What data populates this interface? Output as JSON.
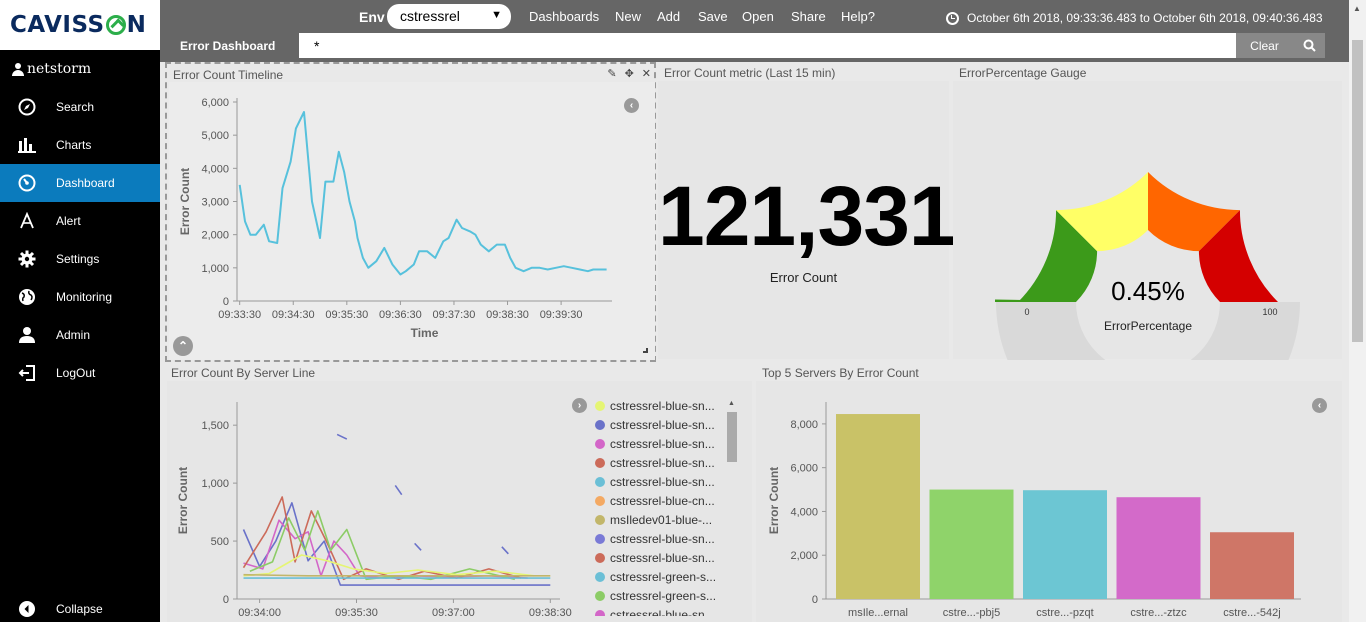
{
  "brand": {
    "logo_text_left": "CAVISS",
    "logo_text_right": "N"
  },
  "user": {
    "name": "netstorm"
  },
  "sidebar": {
    "items": [
      {
        "label": "Search",
        "icon": "compass-icon",
        "active": false
      },
      {
        "label": "Charts",
        "icon": "bar-chart-icon",
        "active": false
      },
      {
        "label": "Dashboard",
        "icon": "dashboard-icon",
        "active": true
      },
      {
        "label": "Alert",
        "icon": "alert-a-icon",
        "active": false
      },
      {
        "label": "Settings",
        "icon": "gear-icon",
        "active": false
      },
      {
        "label": "Monitoring",
        "icon": "globe-icon",
        "active": false
      },
      {
        "label": "Admin",
        "icon": "user-icon",
        "active": false
      },
      {
        "label": "LogOut",
        "icon": "logout-icon",
        "active": false
      }
    ],
    "collapse_label": "Collapse"
  },
  "topbar": {
    "env_label": "Env",
    "env_value": "cstressrel",
    "menu": [
      "Dashboards",
      "New",
      "Add",
      "Save",
      "Open",
      "Share",
      "Help?"
    ],
    "time_range": "October 6th 2018, 09:33:36.483 to October 6th 2018, 09:40:36.483",
    "dashboard_title": "Error Dashboard",
    "query": "*",
    "clear_label": "Clear"
  },
  "panels": {
    "timeline": {
      "title": "Error Count Timeline"
    },
    "metric": {
      "title": "Error Count metric (Last 15 min)",
      "value": "121,331",
      "label": "Error Count"
    },
    "gauge": {
      "title": "ErrorPercentage Gauge",
      "value": "0.45%",
      "label": "ErrorPercentage",
      "min_label": "0",
      "max_label": "100"
    },
    "server_line": {
      "title": "Error Count By Server Line"
    },
    "top5": {
      "title": "Top 5 Servers By Error Count"
    }
  },
  "colors": {
    "accent": "#0b7bbd",
    "timeline_line": "#57c1dc",
    "gauge_green": "#3c9a1a",
    "gauge_yellow": "#ffff66",
    "gauge_orange": "#ff6600",
    "gauge_red": "#d40000",
    "gauge_track": "#d9d9d9"
  },
  "chart_data": [
    {
      "type": "line",
      "name": "timeline",
      "xlabel": "Time",
      "ylabel": "Error Count",
      "ylim": [
        0,
        6000
      ],
      "yticks": [
        "0",
        "1,000",
        "2,000",
        "3,000",
        "4,000",
        "5,000",
        "6,000"
      ],
      "xticks": [
        "09:33:30",
        "09:34:30",
        "09:35:30",
        "09:36:30",
        "09:37:30",
        "09:38:30",
        "09:39:30"
      ],
      "x_minutes": [
        0.0,
        0.1,
        0.2,
        0.3,
        0.45,
        0.55,
        0.7,
        0.8,
        0.95,
        1.05,
        1.2,
        1.35,
        1.5,
        1.6,
        1.75,
        1.85,
        1.95,
        2.05,
        2.15,
        2.2,
        2.3,
        2.4,
        2.55,
        2.7,
        2.85,
        3.0,
        3.1,
        3.25,
        3.35,
        3.5,
        3.65,
        3.8,
        3.9,
        4.05,
        4.15,
        4.3,
        4.4,
        4.5,
        4.65,
        4.8,
        4.95,
        5.05,
        5.15,
        5.3,
        5.45,
        5.6,
        5.75,
        5.9,
        6.05,
        6.2,
        6.35,
        6.5,
        6.6,
        6.75,
        6.85
      ],
      "values": [
        3500,
        2400,
        2000,
        2000,
        2300,
        1800,
        1750,
        3400,
        4200,
        5200,
        5700,
        3000,
        1900,
        3600,
        3600,
        4500,
        3900,
        3000,
        2400,
        1900,
        1300,
        1000,
        1200,
        1600,
        1100,
        800,
        900,
        1100,
        1500,
        1500,
        1300,
        1800,
        1900,
        2450,
        2200,
        2100,
        2000,
        1700,
        1500,
        1700,
        1700,
        1300,
        1000,
        900,
        1000,
        1000,
        950,
        1000,
        1050,
        1000,
        950,
        900,
        950,
        950,
        950
      ]
    },
    {
      "type": "line",
      "name": "server_line",
      "ylabel": "Error Count",
      "ylim": [
        0,
        1700
      ],
      "yticks": [
        "0",
        "500",
        "1,000",
        "1,500"
      ],
      "xticks": [
        "09:34:00",
        "09:35:30",
        "09:37:00",
        "09:38:30"
      ],
      "legend": [
        "cstressrel-blue-sn...",
        "cstressrel-blue-sn...",
        "cstressrel-blue-sn...",
        "cstressrel-blue-sn...",
        "cstressrel-blue-sn...",
        "cstressrel-blue-cn...",
        "msIledev01-blue-...",
        "cstressrel-blue-sn...",
        "cstressrel-blue-sn...",
        "cstressrel-green-s...",
        "cstressrel-green-s...",
        "cstressrel-blue-sn..."
      ],
      "legend_colors": [
        "#e5f574",
        "#6a72c9",
        "#d366c8",
        "#cc6b5a",
        "#6bbfd6",
        "#f4a962",
        "#c2b66a",
        "#7a7ad6",
        "#cc6b5a",
        "#6bbfd6",
        "#8ccc66",
        "#d366c8"
      ],
      "series": [
        {
          "color": "#6a72c9",
          "points": [
            [
              0,
              600
            ],
            [
              0.25,
              280
            ],
            [
              0.5,
              500
            ],
            [
              0.75,
              830
            ],
            [
              1.0,
              330
            ],
            [
              1.25,
              500
            ],
            [
              1.5,
              120
            ],
            [
              2.0,
              120
            ],
            [
              2.5,
              120
            ],
            [
              3.0,
              120
            ],
            [
              3.5,
              120
            ],
            [
              4.0,
              120
            ],
            [
              4.5,
              120
            ],
            [
              4.75,
              120
            ]
          ]
        },
        {
          "color": "#d366c8",
          "points": [
            [
              0,
              310
            ],
            [
              0.3,
              260
            ],
            [
              0.55,
              680
            ],
            [
              0.8,
              520
            ],
            [
              1.0,
              580
            ],
            [
              1.2,
              200
            ],
            [
              1.4,
              500
            ],
            [
              1.6,
              380
            ],
            [
              1.8,
              200
            ],
            [
              2.2,
              180
            ],
            [
              2.6,
              200
            ],
            [
              3.2,
              190
            ],
            [
              3.8,
              200
            ],
            [
              4.4,
              180
            ]
          ]
        },
        {
          "color": "#cc6b5a",
          "points": [
            [
              0,
              270
            ],
            [
              0.35,
              580
            ],
            [
              0.6,
              880
            ],
            [
              0.8,
              320
            ],
            [
              1.05,
              760
            ],
            [
              1.3,
              480
            ],
            [
              1.55,
              170
            ],
            [
              1.9,
              260
            ],
            [
              2.4,
              170
            ],
            [
              2.8,
              240
            ],
            [
              3.3,
              180
            ],
            [
              3.8,
              260
            ],
            [
              4.3,
              180
            ]
          ]
        },
        {
          "color": "#8ccc66",
          "points": [
            [
              0.1,
              240
            ],
            [
              0.45,
              320
            ],
            [
              0.7,
              700
            ],
            [
              0.95,
              420
            ],
            [
              1.15,
              760
            ],
            [
              1.35,
              420
            ],
            [
              1.6,
              600
            ],
            [
              1.9,
              170
            ],
            [
              2.4,
              200
            ],
            [
              2.9,
              170
            ],
            [
              3.5,
              260
            ],
            [
              4.2,
              170
            ]
          ]
        },
        {
          "color": "#6bbfd6",
          "points": [
            [
              0,
              180
            ],
            [
              0.5,
              180
            ],
            [
              1.0,
              180
            ],
            [
              1.5,
              180
            ],
            [
              2.0,
              180
            ],
            [
              2.5,
              180
            ],
            [
              3.0,
              180
            ],
            [
              3.5,
              180
            ],
            [
              4.0,
              180
            ],
            [
              4.5,
              180
            ],
            [
              4.75,
              180
            ]
          ]
        },
        {
          "color": "#e5f574",
          "points": [
            [
              0,
              200
            ],
            [
              0.4,
              220
            ],
            [
              0.9,
              380
            ],
            [
              1.3,
              330
            ],
            [
              1.7,
              260
            ],
            [
              2.2,
              220
            ],
            [
              2.7,
              250
            ],
            [
              3.3,
              210
            ],
            [
              3.9,
              240
            ],
            [
              4.5,
              200
            ]
          ]
        },
        {
          "color": "#c2b66a",
          "points": [
            [
              0,
              210
            ],
            [
              1.0,
              200
            ],
            [
              2.0,
              200
            ],
            [
              3.0,
              200
            ],
            [
              4.0,
              200
            ],
            [
              4.75,
              200
            ]
          ]
        }
      ]
    },
    {
      "type": "bar",
      "name": "top5",
      "ylabel": "Error Count",
      "ylim": [
        0,
        9000
      ],
      "yticks": [
        "0",
        "2,000",
        "4,000",
        "6,000",
        "8,000"
      ],
      "categories": [
        "msIle...ernal",
        "cstre...-pbj5",
        "cstre...-pzqt",
        "cstre...-ztzc",
        "cstre...-542j"
      ],
      "values": [
        8450,
        5000,
        4970,
        4650,
        3050
      ],
      "colors": [
        "#c9c267",
        "#8fd36a",
        "#6cc6d3",
        "#d36ac9",
        "#cf7667"
      ]
    },
    {
      "type": "gauge",
      "name": "error_percentage",
      "value": 0.45,
      "min": 0,
      "max": 100
    }
  ]
}
